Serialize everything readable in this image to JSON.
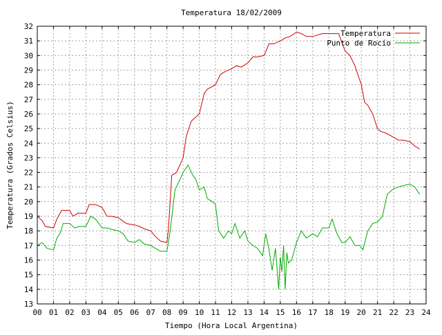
{
  "chart_data": {
    "type": "line",
    "title": "Temperatura 18/02/2009",
    "xlabel": "Tiempo (Hora Local Argentina)",
    "ylabel": "Temperatura (Grados Celsius)",
    "xlim": [
      0,
      24
    ],
    "ylim": [
      13,
      32
    ],
    "x_ticks": [
      "00",
      "01",
      "02",
      "03",
      "04",
      "05",
      "06",
      "07",
      "08",
      "09",
      "10",
      "11",
      "12",
      "13",
      "14",
      "15",
      "16",
      "17",
      "18",
      "19",
      "20",
      "21",
      "22",
      "23",
      "24"
    ],
    "y_ticks": [
      13,
      14,
      15,
      16,
      17,
      18,
      19,
      20,
      21,
      22,
      23,
      24,
      25,
      26,
      27,
      28,
      29,
      30,
      31,
      32
    ],
    "grid": true,
    "legend_position": "top-right",
    "series": [
      {
        "name": "Temperatura",
        "color": "#cc0000",
        "x": [
          0,
          0.3,
          0.5,
          1.0,
          1.2,
          1.5,
          2.0,
          2.2,
          2.5,
          3.0,
          3.2,
          3.6,
          4.0,
          4.3,
          4.6,
          5.0,
          5.5,
          6.0,
          6.3,
          6.7,
          7.0,
          7.3,
          7.6,
          8.0,
          8.1,
          8.3,
          8.6,
          9.0,
          9.2,
          9.5,
          10.0,
          10.3,
          10.5,
          11.0,
          11.3,
          11.6,
          12.0,
          12.3,
          12.6,
          13.0,
          13.3,
          13.6,
          14.0,
          14.3,
          14.6,
          15.0,
          15.3,
          15.6,
          16.0,
          16.3,
          16.6,
          17.0,
          17.3,
          17.6,
          18.0,
          18.3,
          18.6,
          19.0,
          19.3,
          19.6,
          20.0,
          20.2,
          20.4,
          20.7,
          21.0,
          21.2,
          21.5,
          22.0,
          22.3,
          22.6,
          23.0,
          23.3,
          23.6
        ],
        "y": [
          19.0,
          18.7,
          18.3,
          18.2,
          18.8,
          19.4,
          19.4,
          19.0,
          19.2,
          19.2,
          19.8,
          19.8,
          19.6,
          19.0,
          19.0,
          18.9,
          18.5,
          18.4,
          18.3,
          18.1,
          18.0,
          17.6,
          17.3,
          17.2,
          18.2,
          21.8,
          22.0,
          23.0,
          24.5,
          25.5,
          26.0,
          27.4,
          27.7,
          28.0,
          28.7,
          28.9,
          29.1,
          29.3,
          29.2,
          29.5,
          29.9,
          29.9,
          30.0,
          30.8,
          30.8,
          31.0,
          31.2,
          31.3,
          31.6,
          31.5,
          31.3,
          31.3,
          31.4,
          31.5,
          31.5,
          31.5,
          31.5,
          30.3,
          30.0,
          29.3,
          28.0,
          26.8,
          26.6,
          26.0,
          25.0,
          24.8,
          24.7,
          24.4,
          24.2,
          24.2,
          24.1,
          23.8,
          23.6
        ]
      },
      {
        "name": "Punto de Rocío",
        "color": "#00aa00",
        "x": [
          0,
          0.3,
          0.6,
          1.0,
          1.2,
          1.4,
          1.6,
          2.0,
          2.3,
          2.6,
          3.0,
          3.3,
          3.6,
          4.0,
          4.3,
          4.6,
          5.0,
          5.3,
          5.6,
          6.0,
          6.3,
          6.6,
          7.0,
          7.3,
          7.6,
          8.0,
          8.2,
          8.5,
          8.8,
          9.0,
          9.3,
          9.6,
          9.8,
          10.0,
          10.3,
          10.5,
          10.8,
          11.0,
          11.2,
          11.5,
          11.8,
          12.0,
          12.2,
          12.5,
          12.8,
          13.0,
          13.3,
          13.6,
          13.9,
          14.1,
          14.3,
          14.5,
          14.7,
          14.9,
          15.0,
          15.1,
          15.2,
          15.3,
          15.4,
          15.5,
          15.7,
          16.0,
          16.3,
          16.6,
          17.0,
          17.3,
          17.6,
          18.0,
          18.2,
          18.5,
          18.8,
          19.0,
          19.3,
          19.6,
          19.9,
          20.1,
          20.4,
          20.7,
          21.0,
          21.3,
          21.6,
          22.0,
          22.3,
          22.6,
          23.0,
          23.3,
          23.6
        ],
        "y": [
          17.0,
          17.2,
          16.8,
          16.7,
          17.5,
          17.8,
          18.5,
          18.5,
          18.2,
          18.3,
          18.3,
          19.0,
          18.8,
          18.2,
          18.2,
          18.1,
          18.0,
          17.8,
          17.3,
          17.2,
          17.4,
          17.1,
          17.0,
          16.8,
          16.6,
          16.6,
          18.0,
          20.8,
          21.5,
          22.0,
          22.5,
          21.8,
          21.5,
          20.8,
          21.0,
          20.2,
          20.0,
          19.8,
          18.0,
          17.5,
          18.0,
          17.8,
          18.5,
          17.5,
          18.0,
          17.3,
          17.0,
          16.8,
          16.3,
          17.8,
          16.7,
          15.3,
          16.8,
          14.0,
          16.2,
          15.2,
          17.0,
          14.0,
          16.5,
          15.8,
          16.0,
          17.2,
          18.0,
          17.5,
          17.8,
          17.6,
          18.2,
          18.2,
          18.8,
          17.8,
          17.2,
          17.2,
          17.6,
          17.0,
          17.0,
          16.7,
          18.0,
          18.5,
          18.6,
          19.0,
          20.5,
          20.9,
          21.0,
          21.1,
          21.2,
          21.0,
          20.5
        ]
      }
    ]
  }
}
